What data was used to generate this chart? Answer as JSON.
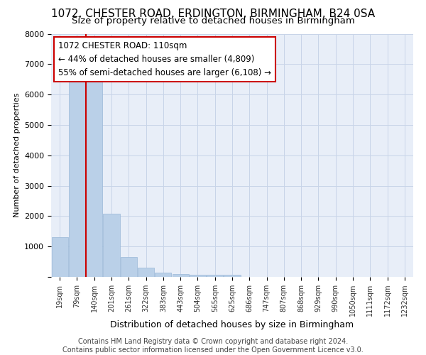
{
  "title_line1": "1072, CHESTER ROAD, ERDINGTON, BIRMINGHAM, B24 0SA",
  "title_line2": "Size of property relative to detached houses in Birmingham",
  "xlabel": "Distribution of detached houses by size in Birmingham",
  "ylabel": "Number of detached properties",
  "bar_labels": [
    "19sqm",
    "79sqm",
    "140sqm",
    "201sqm",
    "261sqm",
    "322sqm",
    "383sqm",
    "443sqm",
    "504sqm",
    "565sqm",
    "625sqm",
    "686sqm",
    "747sqm",
    "807sqm",
    "868sqm",
    "929sqm",
    "990sqm",
    "1050sqm",
    "1111sqm",
    "1172sqm",
    "1232sqm"
  ],
  "bar_values": [
    1300,
    6600,
    6600,
    2080,
    650,
    300,
    150,
    100,
    75,
    75,
    75,
    5,
    3,
    2,
    1,
    1,
    1,
    1,
    1,
    1,
    1
  ],
  "bar_color": "#bad0e8",
  "bar_edge_color": "#9ab8d8",
  "ylim": [
    0,
    8000
  ],
  "yticks": [
    0,
    1000,
    2000,
    3000,
    4000,
    5000,
    6000,
    7000,
    8000
  ],
  "vline_x": 1.5,
  "vline_color": "#cc0000",
  "annotation_text": "1072 CHESTER ROAD: 110sqm\n← 44% of detached houses are smaller (4,809)\n55% of semi-detached houses are larger (6,108) →",
  "annotation_box_color": "#cc0000",
  "footer_line1": "Contains HM Land Registry data © Crown copyright and database right 2024.",
  "footer_line2": "Contains public sector information licensed under the Open Government Licence v3.0.",
  "background_color": "#e8eef8",
  "grid_color": "#c8d4e8",
  "title_fontsize": 11,
  "subtitle_fontsize": 9.5,
  "annotation_fontsize": 8.5,
  "xlabel_fontsize": 9,
  "ylabel_fontsize": 8,
  "footer_fontsize": 7
}
